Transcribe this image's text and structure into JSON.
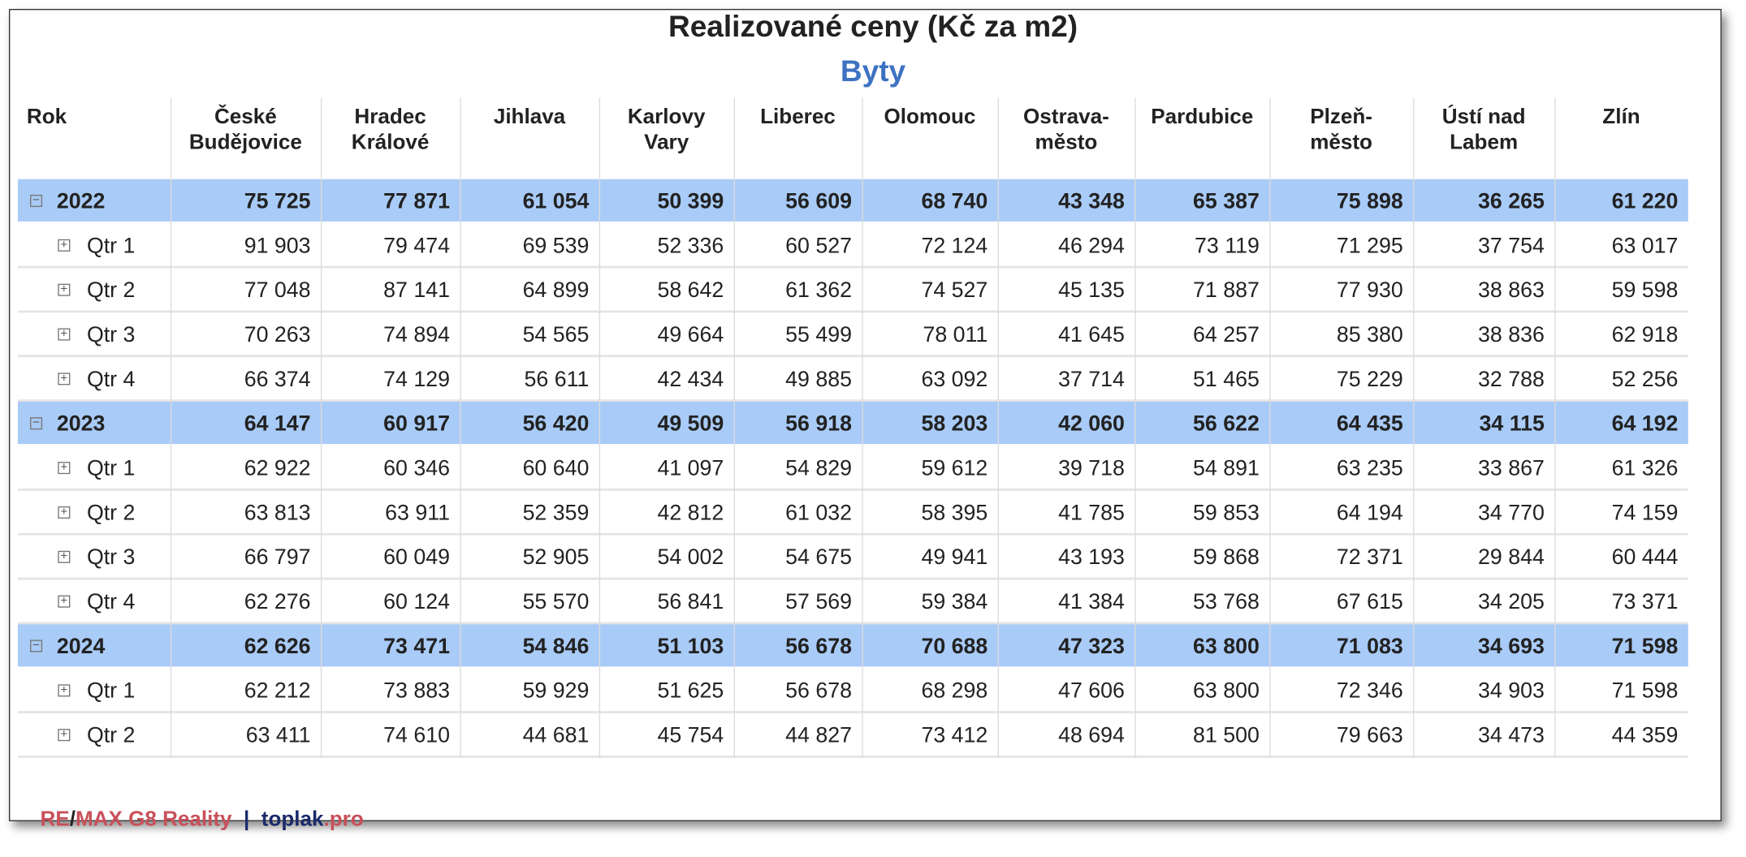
{
  "header": {
    "title": "Realizované ceny (Kč za m2)",
    "subtitle": "Byty"
  },
  "table": {
    "columns": [
      "Rok",
      "České\nBudějovice",
      "Hradec\nKrálové",
      "Jihlava",
      "Karlovy\nVary",
      "Liberec",
      "Olomouc",
      "Ostrava-\nměsto",
      "Pardubice",
      "Plzeň-\nměsto",
      "Ústí nad\nLabem",
      "Zlín"
    ],
    "years": [
      {
        "label": "2022",
        "values": [
          "75 725",
          "77 871",
          "61 054",
          "50 399",
          "56 609",
          "68 740",
          "43 348",
          "65 387",
          "75 898",
          "36 265",
          "61 220"
        ],
        "quarters": [
          {
            "label": "Qtr 1",
            "values": [
              "91 903",
              "79 474",
              "69 539",
              "52 336",
              "60 527",
              "72 124",
              "46 294",
              "73 119",
              "71 295",
              "37 754",
              "63 017"
            ]
          },
          {
            "label": "Qtr 2",
            "values": [
              "77 048",
              "87 141",
              "64 899",
              "58 642",
              "61 362",
              "74 527",
              "45 135",
              "71 887",
              "77 930",
              "38 863",
              "59 598"
            ]
          },
          {
            "label": "Qtr 3",
            "values": [
              "70 263",
              "74 894",
              "54 565",
              "49 664",
              "55 499",
              "78 011",
              "41 645",
              "64 257",
              "85 380",
              "38 836",
              "62 918"
            ]
          },
          {
            "label": "Qtr 4",
            "values": [
              "66 374",
              "74 129",
              "56 611",
              "42 434",
              "49 885",
              "63 092",
              "37 714",
              "51 465",
              "75 229",
              "32 788",
              "52 256"
            ]
          }
        ]
      },
      {
        "label": "2023",
        "values": [
          "64 147",
          "60 917",
          "56 420",
          "49 509",
          "56 918",
          "58 203",
          "42 060",
          "56 622",
          "64 435",
          "34 115",
          "64 192"
        ],
        "quarters": [
          {
            "label": "Qtr 1",
            "values": [
              "62 922",
              "60 346",
              "60 640",
              "41 097",
              "54 829",
              "59 612",
              "39 718",
              "54 891",
              "63 235",
              "33 867",
              "61 326"
            ]
          },
          {
            "label": "Qtr 2",
            "values": [
              "63 813",
              "63 911",
              "52 359",
              "42 812",
              "61 032",
              "58 395",
              "41 785",
              "59 853",
              "64 194",
              "34 770",
              "74 159"
            ]
          },
          {
            "label": "Qtr 3",
            "values": [
              "66 797",
              "60 049",
              "52 905",
              "54 002",
              "54 675",
              "49 941",
              "43 193",
              "59 868",
              "72 371",
              "29 844",
              "60 444"
            ]
          },
          {
            "label": "Qtr 4",
            "values": [
              "62 276",
              "60 124",
              "55 570",
              "56 841",
              "57 569",
              "59 384",
              "41 384",
              "53 768",
              "67 615",
              "34 205",
              "73 371"
            ]
          }
        ]
      },
      {
        "label": "2024",
        "values": [
          "62 626",
          "73 471",
          "54 846",
          "51 103",
          "56 678",
          "70 688",
          "47 323",
          "63 800",
          "71 083",
          "34 693",
          "71 598"
        ],
        "quarters": [
          {
            "label": "Qtr 1",
            "values": [
              "62 212",
              "73 883",
              "59 929",
              "51 625",
              "56 678",
              "68 298",
              "47 606",
              "63 800",
              "72 346",
              "34 903",
              "71 598"
            ]
          },
          {
            "label": "Qtr 2",
            "values": [
              "63 411",
              "74 610",
              "44 681",
              "45 754",
              "44 827",
              "73 412",
              "48 694",
              "81 500",
              "79 663",
              "34 473",
              "44 359"
            ]
          }
        ]
      }
    ]
  },
  "footer": {
    "parts": [
      "RE",
      "/",
      "MAX G8 Reality",
      "  |  ",
      "toplak",
      ".pro"
    ]
  }
}
